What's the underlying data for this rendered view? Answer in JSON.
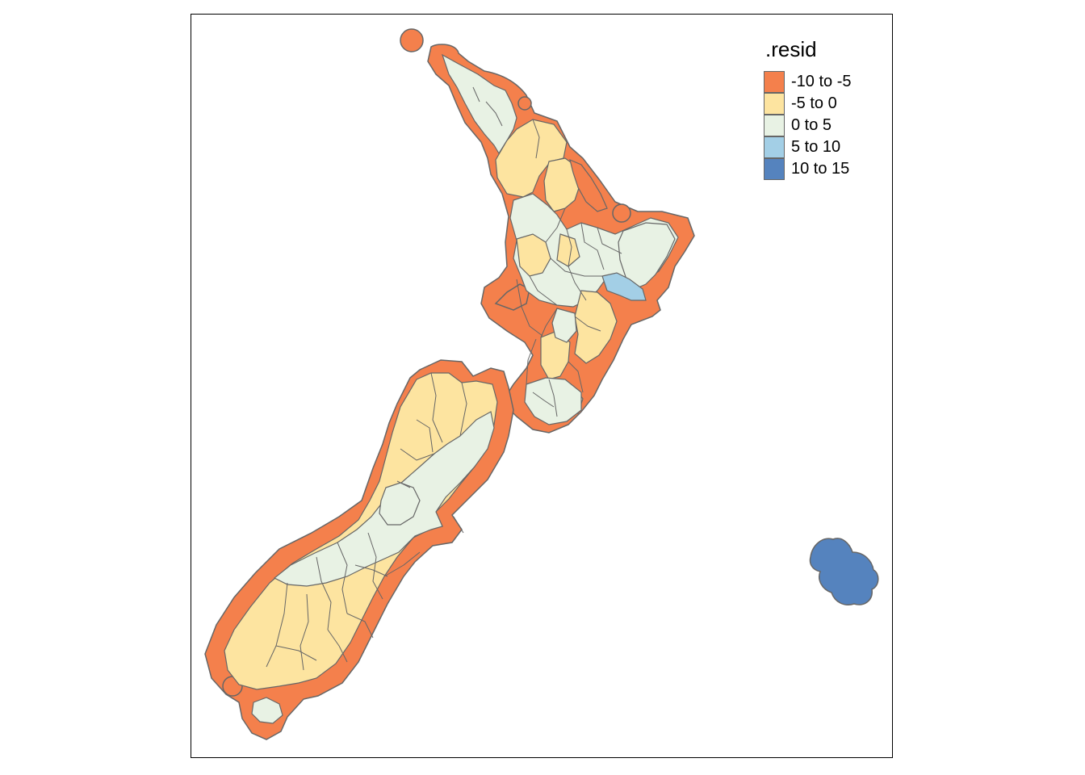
{
  "legend": {
    "title": ".resid",
    "classes": [
      {
        "label": "-10 to -5",
        "color": "#F4804C"
      },
      {
        "label": "-5 to 0",
        "color": "#FDE4A0"
      },
      {
        "label": "0 to 5",
        "color": "#E8F2E4"
      },
      {
        "label": "5 to 10",
        "color": "#A3CFE6"
      },
      {
        "label": "10 to 15",
        "color": "#5583BE"
      }
    ]
  },
  "map": {
    "border_color": "#666666",
    "regions": [
      {
        "name": "offshore-buffer",
        "class": "-10 to -5"
      },
      {
        "name": "north-island-interior",
        "class": "0 to 5"
      },
      {
        "name": "south-island-interior",
        "class": "-5 to 0"
      },
      {
        "name": "chatham-islands",
        "class": "10 to 15"
      }
    ]
  }
}
